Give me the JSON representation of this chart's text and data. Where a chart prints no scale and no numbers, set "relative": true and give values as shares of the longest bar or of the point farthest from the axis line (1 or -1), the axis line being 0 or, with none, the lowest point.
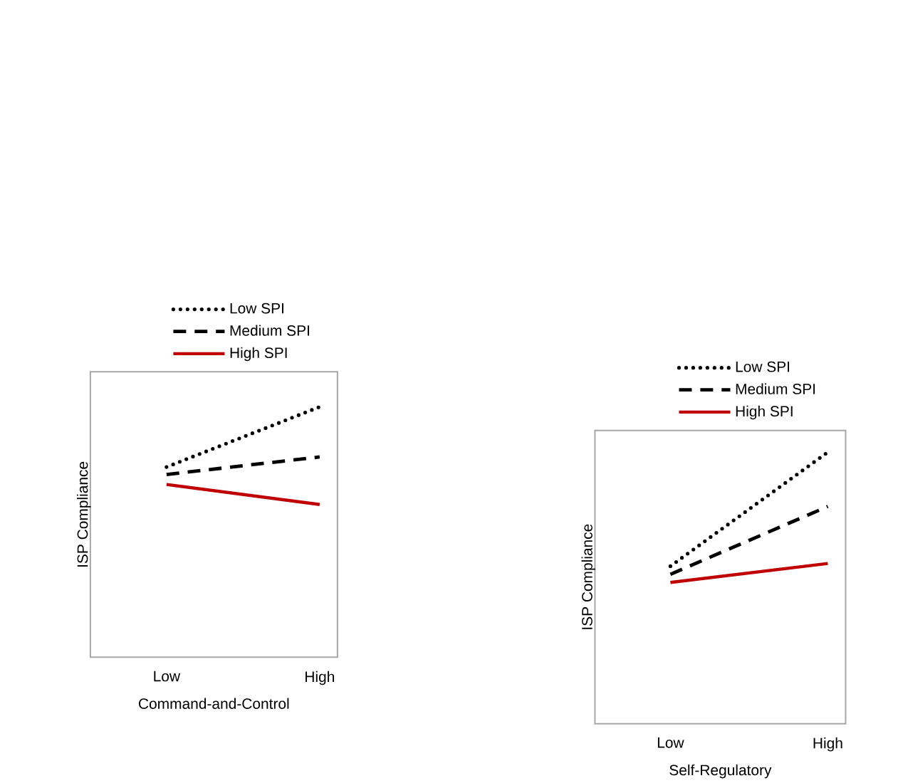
{
  "chart_data": [
    {
      "type": "line",
      "relative": true,
      "xlabel": "Command-and-Control",
      "ylabel": "ISP Compliance",
      "categories": [
        "Low",
        "High"
      ],
      "legend": "top",
      "series": [
        {
          "name": "Low SPI",
          "color": "#000000",
          "line_style": "dotted",
          "values": [
            0.76,
            1.0
          ]
        },
        {
          "name": "Medium SPI",
          "color": "#000000",
          "line_style": "dashed",
          "values": [
            0.73,
            0.8
          ]
        },
        {
          "name": "High SPI",
          "color": "#c00000",
          "line_style": "solid",
          "values": [
            0.69,
            0.61
          ]
        }
      ]
    },
    {
      "type": "line",
      "relative": true,
      "xlabel": "Self-Regulatory",
      "ylabel": "ISP Compliance",
      "categories": [
        "Low",
        "High"
      ],
      "legend": "top",
      "series": [
        {
          "name": "Low SPI",
          "color": "#000000",
          "line_style": "dotted",
          "values": [
            0.58,
            1.0
          ]
        },
        {
          "name": "Medium SPI",
          "color": "#000000",
          "line_style": "dashed",
          "values": [
            0.55,
            0.8
          ]
        },
        {
          "name": "High SPI",
          "color": "#c00000",
          "line_style": "solid",
          "values": [
            0.52,
            0.59
          ]
        }
      ]
    }
  ]
}
